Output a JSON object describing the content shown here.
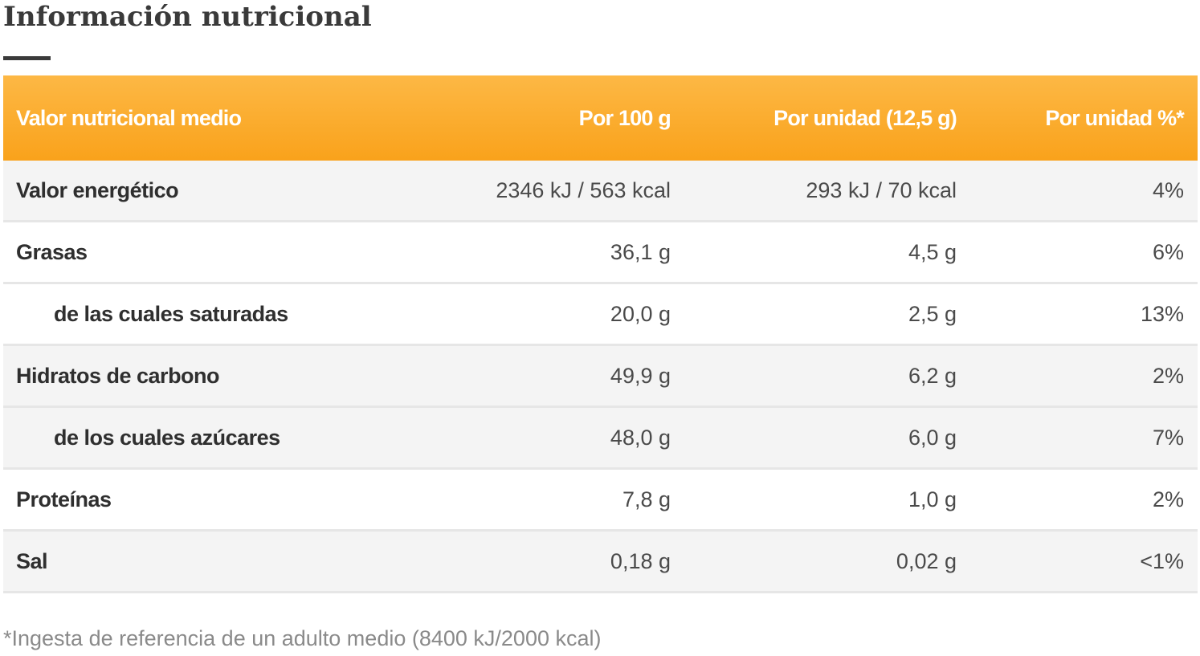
{
  "title": "Información nutricional",
  "colors": {
    "header_gradient_top": "#fdb845",
    "header_gradient_bottom": "#f9a21b",
    "row_shaded": "#f4f4f4",
    "text": "#333333"
  },
  "table": {
    "headers": [
      "Valor nutricional medio",
      "Por 100 g",
      "Por unidad (12,5 g)",
      "Por unidad %*"
    ],
    "rows": [
      {
        "name": "Valor energético",
        "per100": "2346 kJ / 563 kcal",
        "perUnit": "293 kJ / 70 kcal",
        "percent": "4%"
      },
      {
        "name": "Grasas",
        "per100": "36,1 g",
        "perUnit": "4,5 g",
        "percent": "6%"
      },
      {
        "name": "de las cuales saturadas",
        "per100": "20,0 g",
        "perUnit": "2,5 g",
        "percent": "13%"
      },
      {
        "name": "Hidratos de carbono",
        "per100": "49,9 g",
        "perUnit": "6,2 g",
        "percent": "2%"
      },
      {
        "name": "de los cuales azúcares",
        "per100": "48,0 g",
        "perUnit": "6,0 g",
        "percent": "7%"
      },
      {
        "name": "Proteínas",
        "per100": "7,8 g",
        "perUnit": "1,0 g",
        "percent": "2%"
      },
      {
        "name": "Sal",
        "per100": "0,18 g",
        "perUnit": "0,02 g",
        "percent": "<1%"
      }
    ]
  },
  "footnote": "*Ingesta de referencia de un adulto medio (8400 kJ/2000 kcal)"
}
